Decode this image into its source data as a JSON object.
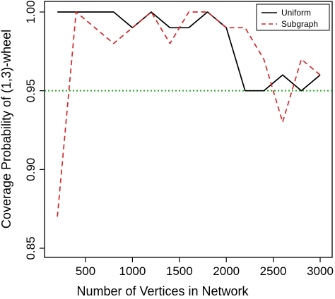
{
  "chart_data": {
    "type": "line",
    "title": "",
    "xlabel": "Number of Vertices in Network",
    "ylabel": "Coverage Probability of (1,3)-wheel",
    "xlim": [
      200,
      3000
    ],
    "ylim": [
      0.85,
      1.0
    ],
    "xticks": [
      500,
      1000,
      1500,
      2000,
      2500,
      3000
    ],
    "yticks": [
      0.85,
      0.9,
      0.95,
      1.0
    ],
    "ytick_labels": [
      "0.85",
      "0.90",
      "0.95",
      "1.00"
    ],
    "x": [
      200,
      400,
      600,
      800,
      1000,
      1200,
      1400,
      1600,
      1800,
      2000,
      2200,
      2400,
      2600,
      2800,
      3000
    ],
    "series": [
      {
        "name": "Uniform",
        "color": "#000000",
        "dash": "solid",
        "values": [
          1.0,
          1.0,
          1.0,
          1.0,
          0.99,
          1.0,
          0.99,
          0.99,
          1.0,
          0.99,
          0.95,
          0.95,
          0.96,
          0.95,
          0.96
        ]
      },
      {
        "name": "Subgraph",
        "color": "#d62728",
        "dash": "dashed",
        "values": [
          0.87,
          1.0,
          0.99,
          0.98,
          0.99,
          1.0,
          0.98,
          1.0,
          1.0,
          0.99,
          0.99,
          0.97,
          0.93,
          0.97,
          0.96
        ]
      }
    ],
    "reference_line": {
      "y": 0.95,
      "color": "#22aa22",
      "dash": "dotted"
    },
    "legend_position": "top-right",
    "grid": false
  }
}
